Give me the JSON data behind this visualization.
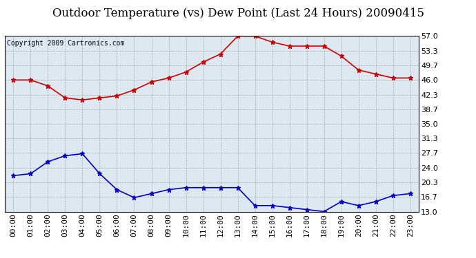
{
  "title": "Outdoor Temperature (vs) Dew Point (Last 24 Hours) 20090415",
  "copyright": "Copyright 2009 Cartronics.com",
  "x_labels": [
    "00:00",
    "01:00",
    "02:00",
    "03:00",
    "04:00",
    "05:00",
    "06:00",
    "07:00",
    "08:00",
    "09:00",
    "10:00",
    "11:00",
    "12:00",
    "13:00",
    "14:00",
    "15:00",
    "16:00",
    "17:00",
    "18:00",
    "19:00",
    "20:00",
    "21:00",
    "22:00",
    "23:00"
  ],
  "temp_values": [
    46.0,
    46.0,
    44.5,
    41.5,
    41.0,
    41.5,
    42.0,
    43.5,
    45.5,
    46.5,
    48.0,
    50.5,
    52.5,
    57.0,
    57.0,
    55.5,
    54.5,
    54.5,
    54.5,
    52.0,
    48.5,
    47.5,
    46.5,
    46.5
  ],
  "dew_values": [
    22.0,
    22.5,
    25.5,
    27.0,
    27.5,
    22.5,
    18.5,
    16.5,
    17.5,
    18.5,
    19.0,
    19.0,
    19.0,
    19.0,
    14.5,
    14.5,
    14.0,
    13.5,
    13.0,
    15.5,
    14.5,
    15.5,
    17.0,
    17.5
  ],
  "temp_color": "#cc0000",
  "dew_color": "#0000cc",
  "background_color": "#dde8f0",
  "grid_color": "#aaaaaa",
  "outer_bg": "#ffffff",
  "ylim_min": 13.0,
  "ylim_max": 57.0,
  "yticks": [
    13.0,
    16.7,
    20.3,
    24.0,
    27.7,
    31.3,
    35.0,
    38.7,
    42.3,
    46.0,
    49.7,
    53.3,
    57.0
  ],
  "marker": "*",
  "markersize": 5,
  "linewidth": 1.2,
  "title_fontsize": 12,
  "tick_fontsize": 8,
  "copyright_fontsize": 7
}
